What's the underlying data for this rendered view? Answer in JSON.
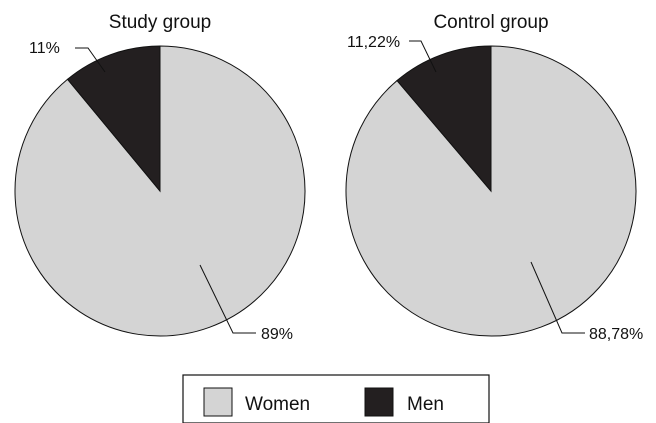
{
  "chart_data": [
    {
      "type": "pie",
      "title": "Study group",
      "slices": [
        {
          "label": "Women",
          "value": 89,
          "display": "89%",
          "color": "#d4d4d4"
        },
        {
          "label": "Men",
          "value": 11,
          "display": "11%",
          "color": "#231f20"
        }
      ]
    },
    {
      "type": "pie",
      "title": "Control group",
      "slices": [
        {
          "label": "Women",
          "value": 88.78,
          "display": "88,78%",
          "color": "#d4d4d4"
        },
        {
          "label": "Men",
          "value": 11.22,
          "display": "11,22%",
          "color": "#231f20"
        }
      ]
    }
  ],
  "legend": [
    {
      "label": "Women",
      "color": "#d4d4d4"
    },
    {
      "label": "Men",
      "color": "#231f20"
    }
  ]
}
